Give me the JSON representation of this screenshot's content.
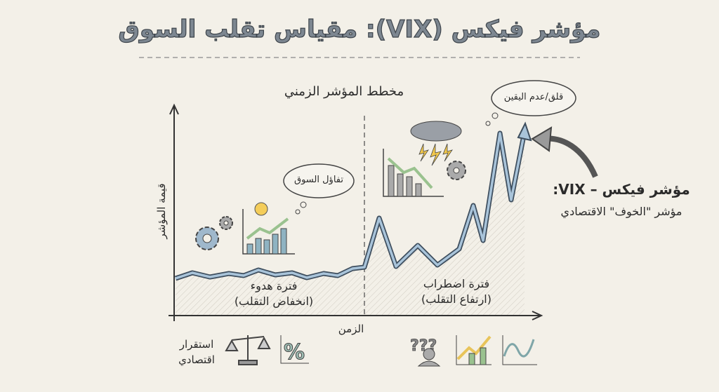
{
  "title": "مؤشر فيكس (VIX): مقياس تقلب السوق",
  "chart_title": "مخطط المؤشر الزمني",
  "y_axis_label": "قيمة المؤشر",
  "x_axis_label": "الزمن",
  "calm_period": {
    "label": "فترة هدوء",
    "sublabel": "(انخفاض التقلب)"
  },
  "turbulent_period": {
    "label": "فترة اضطراب",
    "sublabel": "(ارتفاع التقلب)"
  },
  "clouds": {
    "optimism": "تفاؤل السوق",
    "anxiety": "قلق/عدم اليقين"
  },
  "callout": {
    "title": "مؤشر فيكس – VIX:",
    "subtitle": "مؤشر \"الخوف\" الاقتصادي"
  },
  "stability_label": "استقرار اقتصادي",
  "colors": {
    "line": "#a9c4da",
    "line_outline": "#3e4e5e",
    "paper": "#f3f0e8",
    "title_fill": "#7d8791"
  }
}
